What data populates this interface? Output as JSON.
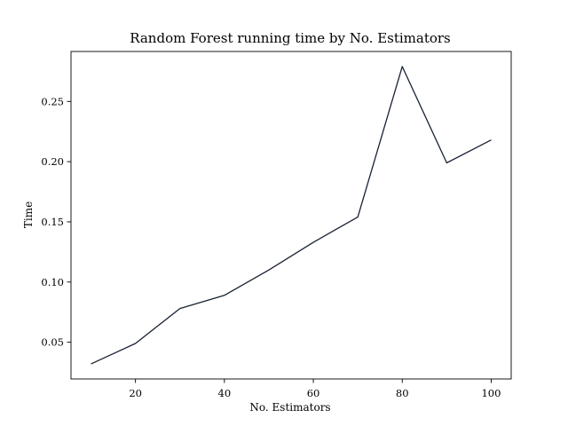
{
  "chart_data": {
    "type": "line",
    "title": "Random Forest running time by No. Estimators",
    "xlabel": "No. Estimators",
    "ylabel": "Time",
    "x": [
      10,
      20,
      30,
      40,
      50,
      60,
      70,
      80,
      90,
      100
    ],
    "series": [
      {
        "values": [
          0.032,
          0.049,
          0.078,
          0.089,
          0.11,
          0.133,
          0.154,
          0.279,
          0.199,
          0.218
        ],
        "color": "#172232"
      }
    ],
    "xlim": [
      5.5,
      104.5
    ],
    "ylim": [
      0.0195,
      0.2915
    ],
    "xticks": [
      20,
      40,
      60,
      80,
      100
    ],
    "xtick_labels": [
      "20",
      "40",
      "60",
      "80",
      "100"
    ],
    "yticks": [
      0.05,
      0.1,
      0.15,
      0.2,
      0.25
    ],
    "ytick_labels": [
      "0.05",
      "0.10",
      "0.15",
      "0.20",
      "0.25"
    ],
    "grid": false,
    "legend": "none"
  }
}
